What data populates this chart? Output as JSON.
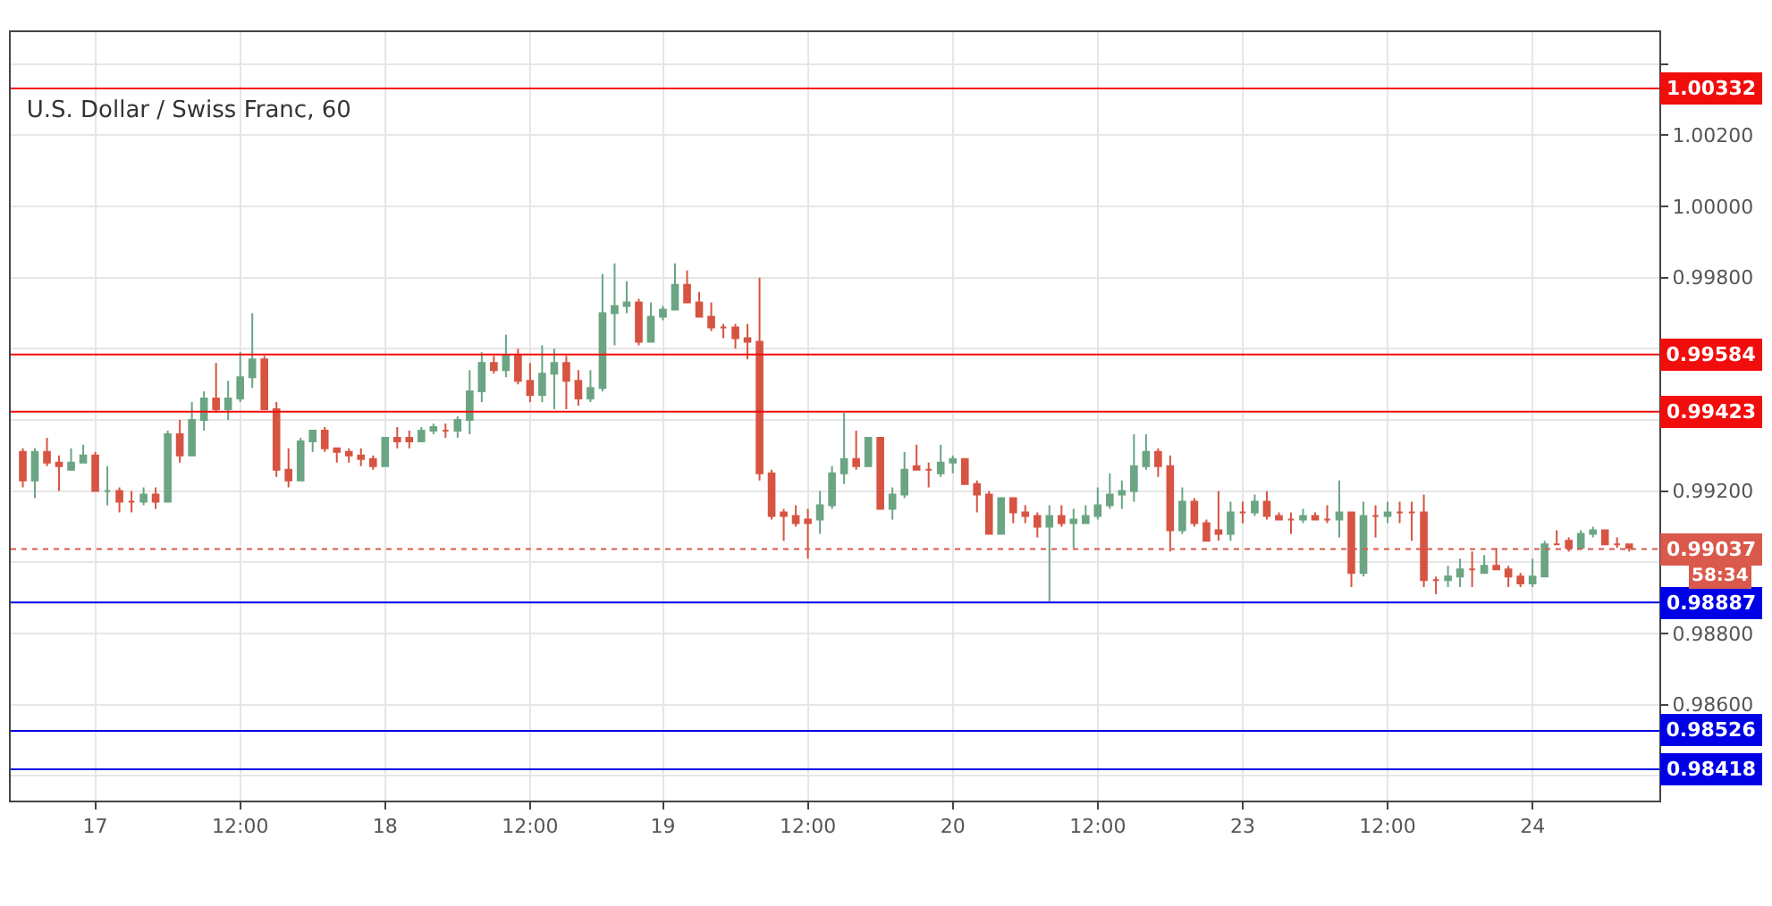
{
  "chart_data": {
    "type": "candlestick",
    "title": "U.S. Dollar / Swiss Franc, 60",
    "categories": [
      null,
      null,
      null,
      null,
      null,
      null,
      "17",
      null,
      null,
      null,
      null,
      null,
      null,
      null,
      null,
      null,
      null,
      null,
      "12:00",
      null,
      null,
      null,
      null,
      null,
      null,
      null,
      null,
      null,
      null,
      null,
      "18",
      null,
      null,
      null,
      null,
      null,
      null,
      null,
      null,
      null,
      null,
      null,
      "12:00",
      null,
      null,
      null,
      null,
      null,
      null,
      null,
      null,
      null,
      null,
      "19",
      null,
      null,
      null,
      null,
      null,
      null,
      null,
      null,
      null,
      null,
      null,
      "12:00",
      null,
      null,
      null,
      null,
      null,
      null,
      null,
      null,
      null,
      null,
      null,
      "20",
      null,
      null,
      null,
      null,
      null,
      null,
      null,
      null,
      null,
      null,
      null,
      "12:00",
      null,
      null,
      null,
      null,
      null,
      null,
      null,
      null,
      null,
      null,
      null,
      "23",
      null,
      null,
      null,
      null,
      null,
      null,
      null,
      null,
      null,
      null,
      null,
      "12:00",
      null,
      null,
      null,
      null,
      null,
      null,
      null,
      null,
      null,
      null,
      null,
      "24",
      null,
      null,
      null,
      null,
      null,
      null,
      null,
      null
    ],
    "ohlc": [
      [
        0.9931,
        0.9932,
        0.9921,
        0.9923
      ],
      [
        0.9923,
        0.9932,
        0.9918,
        0.9931
      ],
      [
        0.9931,
        0.9935,
        0.9927,
        0.9928
      ],
      [
        0.9928,
        0.993,
        0.992,
        0.9927
      ],
      [
        0.9926,
        0.9932,
        0.9926,
        0.9928
      ],
      [
        0.9928,
        0.9933,
        0.9928,
        0.993
      ],
      [
        0.993,
        0.9931,
        0.992,
        0.992
      ],
      [
        0.992,
        0.9927,
        0.9916,
        0.992
      ],
      [
        0.992,
        0.9921,
        0.9914,
        0.9917
      ],
      [
        0.9917,
        0.992,
        0.9914,
        0.9917
      ],
      [
        0.9917,
        0.9921,
        0.9916,
        0.9919
      ],
      [
        0.9919,
        0.9921,
        0.9915,
        0.9917
      ],
      [
        0.9917,
        0.9937,
        0.9917,
        0.9936
      ],
      [
        0.9936,
        0.994,
        0.9928,
        0.993
      ],
      [
        0.993,
        0.9945,
        0.993,
        0.994
      ],
      [
        0.994,
        0.9948,
        0.9937,
        0.9946
      ],
      [
        0.9946,
        0.9956,
        0.9942,
        0.9943
      ],
      [
        0.9943,
        0.9951,
        0.994,
        0.9946
      ],
      [
        0.9946,
        0.9959,
        0.9945,
        0.9952
      ],
      [
        0.9952,
        0.997,
        0.9949,
        0.9957
      ],
      [
        0.9957,
        0.9958,
        0.9943,
        0.9943
      ],
      [
        0.9943,
        0.9945,
        0.9924,
        0.9926
      ],
      [
        0.9926,
        0.9932,
        0.9921,
        0.9923
      ],
      [
        0.9923,
        0.9935,
        0.9923,
        0.9934
      ],
      [
        0.9934,
        0.9937,
        0.9931,
        0.9937
      ],
      [
        0.9937,
        0.9938,
        0.9931,
        0.9932
      ],
      [
        0.9932,
        0.9932,
        0.9928,
        0.9931
      ],
      [
        0.9931,
        0.9932,
        0.9928,
        0.993
      ],
      [
        0.993,
        0.9932,
        0.9927,
        0.9929
      ],
      [
        0.9929,
        0.993,
        0.9926,
        0.9927
      ],
      [
        0.9927,
        0.9935,
        0.9927,
        0.9935
      ],
      [
        0.9935,
        0.9938,
        0.9932,
        0.9934
      ],
      [
        0.9935,
        0.9937,
        0.9932,
        0.9934
      ],
      [
        0.9934,
        0.9938,
        0.9934,
        0.9937
      ],
      [
        0.9937,
        0.9939,
        0.9936,
        0.9938
      ],
      [
        0.9937,
        0.9939,
        0.9935,
        0.9937
      ],
      [
        0.9937,
        0.9941,
        0.9935,
        0.994
      ],
      [
        0.994,
        0.9954,
        0.9936,
        0.9948
      ],
      [
        0.9948,
        0.9959,
        0.9945,
        0.9956
      ],
      [
        0.9956,
        0.9958,
        0.9953,
        0.9954
      ],
      [
        0.9954,
        0.9964,
        0.9952,
        0.9958
      ],
      [
        0.9958,
        0.996,
        0.995,
        0.9951
      ],
      [
        0.9951,
        0.9956,
        0.9945,
        0.9947
      ],
      [
        0.9947,
        0.9961,
        0.9945,
        0.9953
      ],
      [
        0.9953,
        0.996,
        0.9943,
        0.9956
      ],
      [
        0.9956,
        0.9958,
        0.9943,
        0.9951
      ],
      [
        0.9951,
        0.9954,
        0.9944,
        0.9946
      ],
      [
        0.9946,
        0.9954,
        0.9945,
        0.9949
      ],
      [
        0.9949,
        0.9981,
        0.9948,
        0.997
      ],
      [
        0.997,
        0.9984,
        0.9961,
        0.9972
      ],
      [
        0.9972,
        0.9979,
        0.997,
        0.9973
      ],
      [
        0.9973,
        0.9974,
        0.9961,
        0.9962
      ],
      [
        0.9962,
        0.9973,
        0.9962,
        0.9969
      ],
      [
        0.9969,
        0.9972,
        0.9968,
        0.9971
      ],
      [
        0.9971,
        0.9984,
        0.9971,
        0.9978
      ],
      [
        0.9978,
        0.9982,
        0.9973,
        0.9973
      ],
      [
        0.9973,
        0.9976,
        0.9969,
        0.9969
      ],
      [
        0.9969,
        0.9973,
        0.9965,
        0.9966
      ],
      [
        0.9966,
        0.9967,
        0.9963,
        0.9966
      ],
      [
        0.9966,
        0.9967,
        0.996,
        0.9963
      ],
      [
        0.9963,
        0.9967,
        0.9957,
        0.9962
      ],
      [
        0.9962,
        0.998,
        0.9923,
        0.9925
      ],
      [
        0.9925,
        0.9926,
        0.9912,
        0.9913
      ],
      [
        0.9914,
        0.9915,
        0.9906,
        0.9913
      ],
      [
        0.9913,
        0.9916,
        0.991,
        0.9911
      ],
      [
        0.9912,
        0.9915,
        0.9901,
        0.9911
      ],
      [
        0.9912,
        0.992,
        0.9908,
        0.9916
      ],
      [
        0.9916,
        0.9927,
        0.9915,
        0.9925
      ],
      [
        0.9925,
        0.9942,
        0.9922,
        0.9929
      ],
      [
        0.9929,
        0.9937,
        0.9926,
        0.9927
      ],
      [
        0.9927,
        0.9935,
        0.9927,
        0.9935
      ],
      [
        0.9935,
        0.9935,
        0.9915,
        0.9915
      ],
      [
        0.9915,
        0.9921,
        0.9912,
        0.9919
      ],
      [
        0.9919,
        0.9931,
        0.9918,
        0.9926
      ],
      [
        0.9927,
        0.9933,
        0.9926,
        0.9926
      ],
      [
        0.9926,
        0.9928,
        0.9921,
        0.9926
      ],
      [
        0.9925,
        0.9933,
        0.9924,
        0.9928
      ],
      [
        0.9928,
        0.993,
        0.9925,
        0.9929
      ],
      [
        0.9929,
        0.9929,
        0.9922,
        0.9922
      ],
      [
        0.9922,
        0.9923,
        0.9914,
        0.9919
      ],
      [
        0.9919,
        0.992,
        0.9908,
        0.9908
      ],
      [
        0.9908,
        0.9918,
        0.9908,
        0.9918
      ],
      [
        0.9918,
        0.9918,
        0.9911,
        0.9914
      ],
      [
        0.9914,
        0.9916,
        0.9911,
        0.9913
      ],
      [
        0.9913,
        0.9914,
        0.9907,
        0.991
      ],
      [
        0.991,
        0.9916,
        0.9889,
        0.9913
      ],
      [
        0.9913,
        0.9916,
        0.991,
        0.9911
      ],
      [
        0.9911,
        0.9915,
        0.9904,
        0.9912
      ],
      [
        0.9911,
        0.9916,
        0.9911,
        0.9913
      ],
      [
        0.9913,
        0.9921,
        0.9912,
        0.9916
      ],
      [
        0.9916,
        0.9925,
        0.9915,
        0.9919
      ],
      [
        0.9919,
        0.9923,
        0.9915,
        0.992
      ],
      [
        0.992,
        0.9936,
        0.9917,
        0.9927
      ],
      [
        0.9927,
        0.9936,
        0.9926,
        0.9931
      ],
      [
        0.9931,
        0.9932,
        0.9924,
        0.9927
      ],
      [
        0.9927,
        0.993,
        0.9903,
        0.9909
      ],
      [
        0.9909,
        0.9921,
        0.9908,
        0.9917
      ],
      [
        0.9917,
        0.9918,
        0.991,
        0.9911
      ],
      [
        0.9911,
        0.9912,
        0.9906,
        0.9906
      ],
      [
        0.9909,
        0.992,
        0.9906,
        0.9908
      ],
      [
        0.9908,
        0.9917,
        0.9906,
        0.9914
      ],
      [
        0.9914,
        0.9917,
        0.9911,
        0.9914
      ],
      [
        0.9914,
        0.9919,
        0.9913,
        0.9917
      ],
      [
        0.9917,
        0.992,
        0.9912,
        0.9913
      ],
      [
        0.9913,
        0.9914,
        0.9912,
        0.9912
      ],
      [
        0.9912,
        0.9914,
        0.9908,
        0.9912
      ],
      [
        0.9912,
        0.9915,
        0.9911,
        0.9913
      ],
      [
        0.9913,
        0.9914,
        0.9912,
        0.9912
      ],
      [
        0.9912,
        0.9916,
        0.9911,
        0.9912
      ],
      [
        0.9912,
        0.9923,
        0.9907,
        0.9914
      ],
      [
        0.9914,
        0.9914,
        0.9893,
        0.9897
      ],
      [
        0.9897,
        0.9917,
        0.9896,
        0.9913
      ],
      [
        0.9913,
        0.9916,
        0.9907,
        0.9913
      ],
      [
        0.9913,
        0.9917,
        0.9911,
        0.9914
      ],
      [
        0.9914,
        0.9917,
        0.9911,
        0.9914
      ],
      [
        0.9914,
        0.9917,
        0.9906,
        0.9914
      ],
      [
        0.9914,
        0.9919,
        0.9893,
        0.9895
      ],
      [
        0.9895,
        0.9896,
        0.9891,
        0.9895
      ],
      [
        0.9895,
        0.9899,
        0.9893,
        0.9896
      ],
      [
        0.9896,
        0.9901,
        0.9893,
        0.9898
      ],
      [
        0.9898,
        0.9903,
        0.9893,
        0.9898
      ],
      [
        0.9897,
        0.9902,
        0.9897,
        0.9899
      ],
      [
        0.9899,
        0.9904,
        0.9898,
        0.9898
      ],
      [
        0.9898,
        0.9899,
        0.9893,
        0.9896
      ],
      [
        0.9896,
        0.9897,
        0.9893,
        0.9894
      ],
      [
        0.9894,
        0.9901,
        0.9893,
        0.9896
      ],
      [
        0.9896,
        0.9906,
        0.9896,
        0.9905
      ],
      [
        0.9905,
        0.9909,
        0.9905,
        0.9905
      ],
      [
        0.9906,
        0.9907,
        0.9903,
        0.9904
      ],
      [
        0.9904,
        0.9909,
        0.9904,
        0.9908
      ],
      [
        0.9908,
        0.991,
        0.9907,
        0.9909
      ],
      [
        0.9909,
        0.9909,
        0.9905,
        0.9905
      ],
      [
        0.9905,
        0.9907,
        0.9904,
        0.9905
      ],
      [
        0.9905,
        0.9905,
        0.9903,
        0.9904
      ]
    ],
    "colors": [
      "#d75442",
      "#6ba583",
      "#d75442",
      "#d75442",
      "#6ba583",
      "#6ba583",
      "#d75442",
      "#6ba583",
      "#d75442",
      "#d75442",
      "#6ba583",
      "#d75442",
      "#6ba583",
      "#d75442",
      "#6ba583",
      "#6ba583",
      "#d75442",
      "#6ba583",
      "#6ba583",
      "#6ba583",
      "#d75442",
      "#d75442",
      "#d75442",
      "#6ba583",
      "#6ba583",
      "#d75442",
      "#d75442",
      "#d75442",
      "#d75442",
      "#d75442",
      "#6ba583",
      "#d75442",
      "#d75442",
      "#6ba583",
      "#6ba583",
      "#d75442",
      "#6ba583",
      "#6ba583",
      "#6ba583",
      "#d75442",
      "#6ba583",
      "#d75442",
      "#d75442",
      "#6ba583",
      "#6ba583",
      "#d75442",
      "#d75442",
      "#6ba583",
      "#6ba583",
      "#6ba583",
      "#6ba583",
      "#d75442",
      "#6ba583",
      "#6ba583",
      "#6ba583",
      "#d75442",
      "#d75442",
      "#d75442",
      "#d75442",
      "#d75442",
      "#d75442",
      "#d75442",
      "#d75442",
      "#d75442",
      "#d75442",
      "#d75442",
      "#6ba583",
      "#6ba583",
      "#6ba583",
      "#d75442",
      "#6ba583",
      "#d75442",
      "#6ba583",
      "#6ba583",
      "#d75442",
      "#d75442",
      "#6ba583",
      "#6ba583",
      "#d75442",
      "#d75442",
      "#d75442",
      "#6ba583",
      "#d75442",
      "#d75442",
      "#d75442",
      "#6ba583",
      "#d75442",
      "#6ba583",
      "#6ba583",
      "#6ba583",
      "#6ba583",
      "#6ba583",
      "#6ba583",
      "#6ba583",
      "#d75442",
      "#d75442",
      "#6ba583",
      "#d75442",
      "#d75442",
      "#d75442",
      "#6ba583",
      "#d75442",
      "#6ba583",
      "#d75442",
      "#d75442",
      "#d75442",
      "#6ba583",
      "#d75442",
      "#d75442",
      "#6ba583",
      "#d75442",
      "#6ba583",
      "#d75442",
      "#6ba583",
      "#d75442",
      "#d75442",
      "#d75442",
      "#d75442",
      "#6ba583",
      "#6ba583",
      "#d75442",
      "#6ba583",
      "#d75442",
      "#d75442",
      "#d75442",
      "#6ba583",
      "#6ba583",
      "#d75442",
      "#d75442",
      "#6ba583",
      "#6ba583",
      "#d75442",
      "#d75442",
      "#d75442"
    ],
    "ylim": [
      0.9833,
      1.0049
    ],
    "yticks": [
      {
        "value": 0.984,
        "label": null
      },
      {
        "value": 0.986,
        "label": "0.98600"
      },
      {
        "value": 0.988,
        "label": "0.98800"
      },
      {
        "value": 0.99,
        "label": null
      },
      {
        "value": 0.992,
        "label": "0.99200"
      },
      {
        "value": 0.994,
        "label": null
      },
      {
        "value": 0.996,
        "label": null
      },
      {
        "value": 0.998,
        "label": "0.99800"
      },
      {
        "value": 1.0,
        "label": "1.00000"
      },
      {
        "value": 1.002,
        "label": "1.00200"
      },
      {
        "value": 1.004,
        "label": null
      }
    ],
    "ref_lines": [
      {
        "axis": "y",
        "value": 1.00332,
        "label": "1.00332",
        "color": "#f20d0d"
      },
      {
        "axis": "y",
        "value": 0.99584,
        "label": "0.99584",
        "color": "#f20d0d"
      },
      {
        "axis": "y",
        "value": 0.99423,
        "label": "0.99423",
        "color": "#f20d0d"
      },
      {
        "axis": "y",
        "value": 0.99037,
        "label": "0.99037",
        "color": "#d9594c",
        "line_style": "dotted"
      },
      {
        "axis": "y",
        "value": 0.98887,
        "label": "0.98887",
        "color": "#0000e6"
      },
      {
        "axis": "y",
        "value": 0.98526,
        "label": "0.98526",
        "color": "#0000e6"
      },
      {
        "axis": "y",
        "value": 0.98418,
        "label": "0.98418",
        "color": "#0000e6"
      }
    ],
    "annotations": [
      "58:34"
    ],
    "grid": true
  }
}
